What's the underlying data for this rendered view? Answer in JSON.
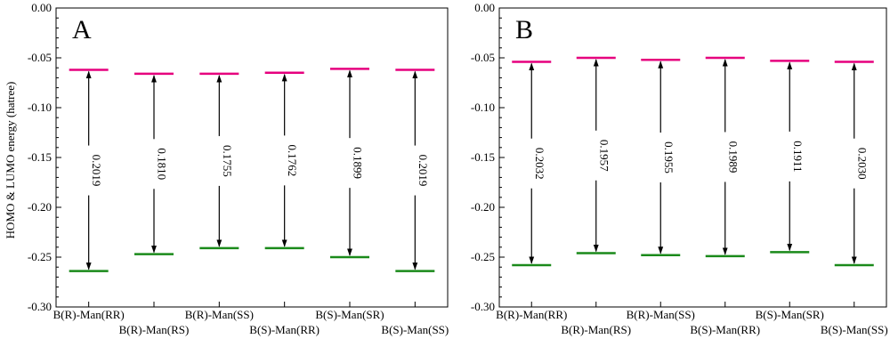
{
  "chart_data": {
    "type": "energy-level",
    "ylabel": "HOMO & LUMO energy (hatree)",
    "ylim": [
      -0.3,
      0.0
    ],
    "yticks": [
      "0.00",
      "-0.05",
      "-0.10",
      "-0.15",
      "-0.20",
      "-0.25",
      "-0.30"
    ],
    "grid": false,
    "colors": {
      "lumo": "#e6007e",
      "homo": "#1a8a1a",
      "arrow": "#000000"
    },
    "panels": [
      {
        "label": "A",
        "categories": [
          "B(R)-Man(RR)",
          "B(R)-Man(RS)",
          "B(R)-Man(SS)",
          "B(S)-Man(RR)",
          "B(S)-Man(SR)",
          "B(S)-Man(SS)"
        ],
        "lumo": [
          -0.062,
          -0.066,
          -0.066,
          -0.065,
          -0.061,
          -0.062
        ],
        "homo": [
          -0.264,
          -0.247,
          -0.241,
          -0.241,
          -0.25,
          -0.264
        ],
        "gap_labels": [
          "0.2019",
          "0.1810",
          "0.1755",
          "0.1762",
          "0.1899",
          "0.2019"
        ]
      },
      {
        "label": "B",
        "categories": [
          "B(R)-Man(RR)",
          "B(R)-Man(RS)",
          "B(R)-Man(SS)",
          "B(S)-Man(RR)",
          "B(S)-Man(SR)",
          "B(S)-Man(SS)"
        ],
        "lumo": [
          -0.054,
          -0.05,
          -0.052,
          -0.05,
          -0.053,
          -0.054
        ],
        "homo": [
          -0.258,
          -0.246,
          -0.248,
          -0.249,
          -0.245,
          -0.258
        ],
        "gap_labels": [
          "0.2032",
          "0.1957",
          "0.1955",
          "0.1989",
          "0.1911",
          "0.2030"
        ]
      }
    ]
  }
}
